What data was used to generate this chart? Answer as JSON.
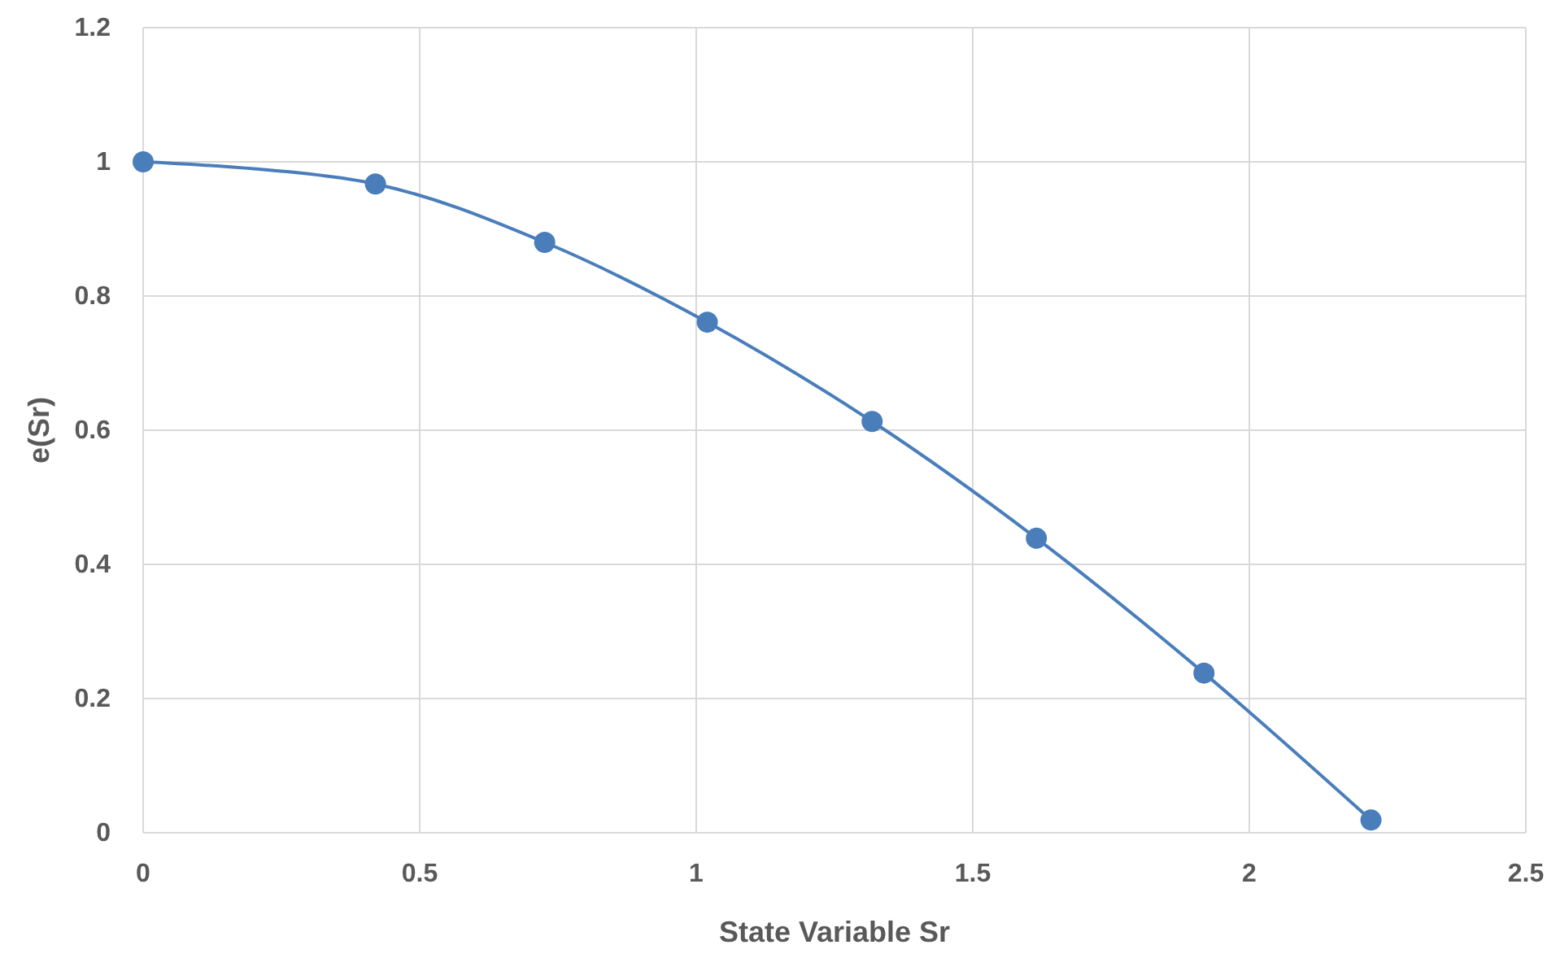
{
  "chart_data": {
    "type": "line",
    "xlabel": "State Variable Sr",
    "ylabel": "e(Sr)",
    "x": [
      0,
      0.42,
      0.726,
      1.02,
      1.318,
      1.615,
      1.918,
      2.22
    ],
    "series": [
      {
        "color": "#4a7ebb",
        "values": [
          1.0,
          0.967,
          0.88,
          0.761,
          0.613,
          0.439,
          0.238,
          0.019
        ]
      }
    ],
    "xlim": [
      0,
      2.5
    ],
    "xticks": [
      0,
      0.5,
      1,
      1.5,
      2,
      2.5
    ],
    "ylim": [
      0,
      1.2
    ],
    "yticks": [
      0,
      0.2,
      0.4,
      0.6,
      0.8,
      1,
      1.2
    ],
    "grid": true,
    "marker": "circle",
    "line_style": "solid"
  }
}
